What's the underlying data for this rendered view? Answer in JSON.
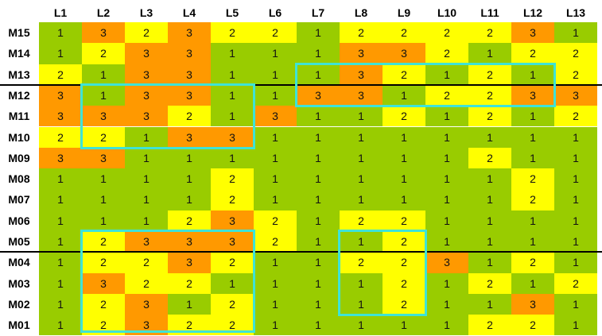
{
  "colors": {
    "1": "#99cc00",
    "2": "#ffff00",
    "3": "#ff9900",
    "highlight": "#3fe3d6"
  },
  "columns": [
    "L1",
    "L2",
    "L3",
    "L4",
    "L5",
    "L6",
    "L7",
    "L8",
    "L9",
    "L10",
    "L11",
    "L12",
    "L13"
  ],
  "rows": [
    {
      "label": "M15",
      "values": [
        1,
        3,
        2,
        3,
        2,
        2,
        1,
        2,
        2,
        2,
        2,
        3,
        1
      ]
    },
    {
      "label": "M14",
      "values": [
        1,
        2,
        3,
        3,
        1,
        1,
        1,
        3,
        3,
        2,
        1,
        2,
        2
      ]
    },
    {
      "label": "M13",
      "values": [
        2,
        1,
        3,
        3,
        1,
        1,
        1,
        3,
        2,
        1,
        2,
        1,
        2
      ]
    },
    {
      "label": "M12",
      "values": [
        3,
        1,
        3,
        3,
        1,
        1,
        3,
        3,
        1,
        2,
        2,
        3,
        3
      ]
    },
    {
      "label": "M11",
      "values": [
        3,
        3,
        3,
        2,
        1,
        3,
        1,
        1,
        2,
        1,
        2,
        1,
        2
      ]
    },
    {
      "label": "M10",
      "values": [
        2,
        2,
        1,
        3,
        3,
        1,
        1,
        1,
        1,
        1,
        1,
        1,
        1
      ]
    },
    {
      "label": "M09",
      "values": [
        3,
        3,
        1,
        1,
        1,
        1,
        1,
        1,
        1,
        1,
        2,
        1,
        1
      ]
    },
    {
      "label": "M08",
      "values": [
        1,
        1,
        1,
        1,
        2,
        1,
        1,
        1,
        1,
        1,
        1,
        2,
        1
      ]
    },
    {
      "label": "M07",
      "values": [
        1,
        1,
        1,
        1,
        2,
        1,
        1,
        1,
        1,
        1,
        1,
        2,
        1
      ]
    },
    {
      "label": "M06",
      "values": [
        1,
        1,
        1,
        2,
        3,
        2,
        1,
        2,
        2,
        1,
        1,
        1,
        1
      ]
    },
    {
      "label": "M05",
      "values": [
        1,
        2,
        3,
        3,
        3,
        2,
        1,
        1,
        2,
        1,
        1,
        1,
        1
      ]
    },
    {
      "label": "M04",
      "values": [
        1,
        2,
        2,
        3,
        2,
        1,
        1,
        2,
        2,
        3,
        1,
        2,
        1
      ]
    },
    {
      "label": "M03",
      "values": [
        1,
        3,
        2,
        2,
        1,
        1,
        1,
        1,
        2,
        1,
        2,
        1,
        2
      ]
    },
    {
      "label": "M02",
      "values": [
        1,
        2,
        3,
        1,
        2,
        1,
        1,
        1,
        2,
        1,
        1,
        3,
        1
      ]
    },
    {
      "label": "M01",
      "values": [
        1,
        2,
        3,
        2,
        2,
        1,
        1,
        1,
        1,
        1,
        2,
        2,
        1
      ]
    }
  ]
}
